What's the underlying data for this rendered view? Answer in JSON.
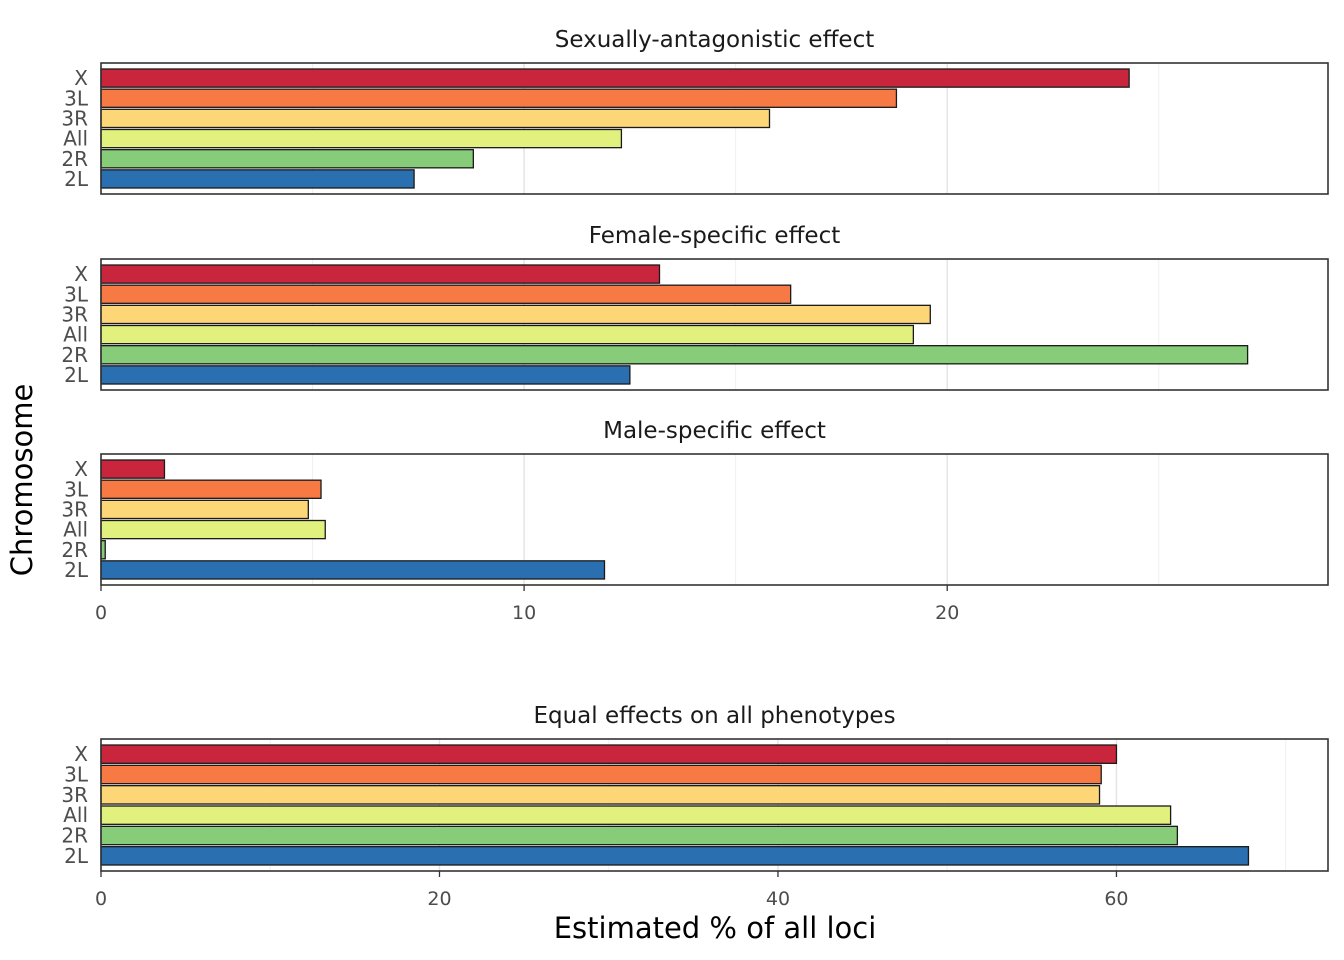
{
  "chart_data": {
    "type": "bar",
    "orientation": "horizontal",
    "ylabel": "Chromosome",
    "xlabel": "Estimated % of all loci",
    "categories": [
      "X",
      "3L",
      "3R",
      "All",
      "2R",
      "2L"
    ],
    "colors": {
      "X": "#c9263d",
      "3L": "#f77a45",
      "3R": "#fcd677",
      "All": "#e2f07d",
      "2R": "#87cc79",
      "2L": "#2a6faf"
    },
    "grid": true,
    "legend": "none",
    "panels": [
      {
        "title": "Sexually-antagonistic effect",
        "values": {
          "X": 24.3,
          "3L": 18.8,
          "3R": 15.8,
          "All": 12.3,
          "2R": 8.8,
          "2L": 7.4
        },
        "xlim": [
          0,
          29
        ],
        "xticks": []
      },
      {
        "title": "Female-specific effect",
        "values": {
          "X": 13.2,
          "3L": 16.3,
          "3R": 19.6,
          "All": 19.2,
          "2R": 27.1,
          "2L": 12.5
        },
        "xlim": [
          0,
          29
        ],
        "xticks": []
      },
      {
        "title": "Male-specific effect",
        "values": {
          "X": 1.5,
          "3L": 5.2,
          "3R": 4.9,
          "All": 5.3,
          "2R": 0.1,
          "2L": 11.9
        },
        "xlim": [
          0,
          29
        ],
        "xticks": [
          0,
          10,
          20
        ]
      },
      {
        "title": "Equal effects on all phenotypes",
        "values": {
          "X": 60.0,
          "3L": 59.1,
          "3R": 59.0,
          "All": 63.2,
          "2R": 63.6,
          "2L": 67.8
        },
        "xlim": [
          0,
          72.5
        ],
        "xticks": [
          0,
          20,
          40,
          60
        ]
      }
    ]
  }
}
